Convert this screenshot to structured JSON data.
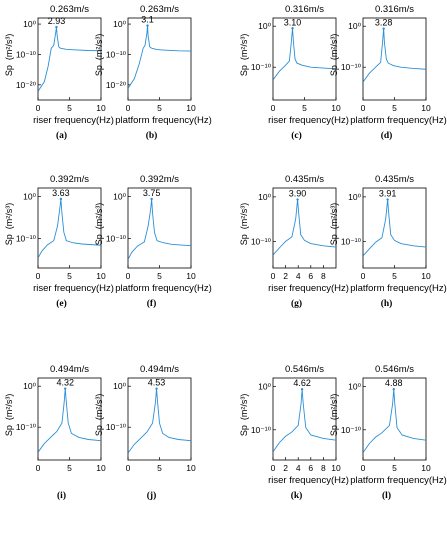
{
  "chart_data": [
    {
      "id": "a",
      "type": "line",
      "title": "0.263m/s",
      "peak_label": "2.93",
      "xlabel": "riser frequency(Hz)",
      "ylabel": "Sp",
      "yunit": "(m²/s³)",
      "panel_label": "(a)",
      "xlim": [
        0,
        10
      ],
      "ylog": true,
      "ylim_exp": [
        -25,
        2
      ],
      "xticks": [
        "0",
        "5",
        "10"
      ],
      "yticks": [
        {
          "exp": 0,
          "label": "10⁰"
        },
        {
          "exp": -10,
          "label": "10⁻¹⁰"
        },
        {
          "exp": -20,
          "label": "10⁻²⁰"
        }
      ],
      "color": "#2b8fd6",
      "series": [
        {
          "x": [
            0.05,
            1,
            1.6,
            2.1,
            2.5,
            2.8,
            2.93,
            3.05,
            3.3,
            3.6,
            4.5,
            6,
            8,
            10
          ],
          "y_exp": [
            -22,
            -19,
            -14,
            -8,
            -7,
            -3,
            -1,
            -4,
            -7.5,
            -8,
            -8.3,
            -8.5,
            -8.7,
            -8.8
          ]
        }
      ]
    },
    {
      "id": "b",
      "type": "line",
      "title": "0.263m/s",
      "peak_label": "3.1",
      "xlabel": "platform frequency(Hz)",
      "ylabel": "Sp",
      "yunit": "(m²/s³)",
      "panel_label": "(b)",
      "xlim": [
        0,
        10
      ],
      "ylog": true,
      "ylim_exp": [
        -25,
        2
      ],
      "xticks": [
        "0",
        "5",
        "10"
      ],
      "yticks": [
        {
          "exp": 0,
          "label": "10⁰"
        },
        {
          "exp": -10,
          "label": "10⁻¹⁰"
        },
        {
          "exp": -20,
          "label": "10⁻²⁰"
        }
      ],
      "color": "#2b8fd6",
      "series": [
        {
          "x": [
            0.05,
            1,
            1.8,
            2.4,
            2.7,
            3.0,
            3.1,
            3.2,
            3.45,
            3.8,
            4.6,
            6,
            8,
            10
          ],
          "y_exp": [
            -21,
            -18,
            -13,
            -8,
            -7,
            -3,
            -0.5,
            -4,
            -7.5,
            -8,
            -8.4,
            -8.6,
            -8.8,
            -8.9
          ]
        }
      ]
    },
    {
      "id": "c",
      "type": "line",
      "title": "0.316m/s",
      "peak_label": "3.10",
      "xlabel": "riser frequency(Hz)",
      "ylabel": "Sp",
      "yunit": "(m²/s³)",
      "panel_label": "(c)",
      "xlim": [
        0,
        10
      ],
      "ylog": true,
      "ylim_exp": [
        -18,
        2
      ],
      "xticks": [
        "0",
        "5",
        "10"
      ],
      "yticks": [
        {
          "exp": 0,
          "label": "10⁰"
        },
        {
          "exp": -10,
          "label": "10⁻¹⁰"
        }
      ],
      "color": "#2b8fd6",
      "series": [
        {
          "x": [
            0.05,
            1,
            2,
            2.6,
            2.9,
            3.1,
            3.25,
            3.5,
            3.8,
            4.6,
            6,
            8,
            10
          ],
          "y_exp": [
            -13,
            -11,
            -9.5,
            -8.5,
            -4,
            -0.5,
            -4,
            -8,
            -9,
            -9.5,
            -10,
            -10.2,
            -10.4
          ]
        }
      ]
    },
    {
      "id": "d",
      "type": "line",
      "title": "0.316m/s",
      "peak_label": "3.28",
      "xlabel": "platform frequency(Hz)",
      "ylabel": "Sp",
      "yunit": "(m²/s³)",
      "panel_label": "(d)",
      "xlim": [
        0,
        10
      ],
      "ylog": true,
      "ylim_exp": [
        -18,
        2
      ],
      "xticks": [
        "0",
        "5",
        "10"
      ],
      "yticks": [
        {
          "exp": 0,
          "label": "10⁰"
        },
        {
          "exp": -10,
          "label": "10⁻¹⁰"
        }
      ],
      "color": "#2b8fd6",
      "series": [
        {
          "x": [
            0.05,
            1,
            2,
            2.8,
            3.1,
            3.28,
            3.4,
            3.7,
            4,
            4.8,
            6,
            8,
            10
          ],
          "y_exp": [
            -13.5,
            -11.5,
            -10,
            -8.8,
            -4,
            -0.6,
            -4,
            -8,
            -9,
            -9.6,
            -10,
            -10.3,
            -10.5
          ]
        }
      ]
    },
    {
      "id": "e",
      "type": "line",
      "title": "0.392m/s",
      "peak_label": "3.63",
      "xlabel": "riser frequency(Hz)",
      "ylabel": "Sp",
      "yunit": "(m²/s³)",
      "panel_label": "(e)",
      "xlim": [
        0,
        10
      ],
      "ylog": true,
      "ylim_exp": [
        -17,
        2
      ],
      "xticks": [
        "0",
        "5",
        "10"
      ],
      "yticks": [
        {
          "exp": 0,
          "label": "10⁰"
        },
        {
          "exp": -10,
          "label": "10⁻¹⁰"
        }
      ],
      "color": "#2b8fd6",
      "series": [
        {
          "x": [
            0.05,
            0.6,
            1.5,
            2.5,
            3.1,
            3.45,
            3.63,
            3.8,
            4.1,
            4.5,
            5.5,
            7,
            10
          ],
          "y_exp": [
            -14.5,
            -13,
            -11.5,
            -10.5,
            -7,
            -3,
            -0.6,
            -4,
            -8.5,
            -10.5,
            -11,
            -11.3,
            -11.6
          ]
        }
      ]
    },
    {
      "id": "f",
      "type": "line",
      "title": "0.392m/s",
      "peak_label": "3.75",
      "xlabel": "platform frequency(Hz)",
      "ylabel": "Sp",
      "yunit": "(m²/s³)",
      "panel_label": "(f)",
      "xlim": [
        0,
        10
      ],
      "ylog": true,
      "ylim_exp": [
        -17,
        2
      ],
      "xticks": [
        "0",
        "5",
        "10"
      ],
      "yticks": [
        {
          "exp": 0,
          "label": "10⁰"
        },
        {
          "exp": -10,
          "label": "10⁻¹⁰"
        }
      ],
      "color": "#2b8fd6",
      "series": [
        {
          "x": [
            0.05,
            0.6,
            1.5,
            2.6,
            3.2,
            3.6,
            3.75,
            3.9,
            4.2,
            4.6,
            5.6,
            7,
            10
          ],
          "y_exp": [
            -14.8,
            -13.3,
            -11.8,
            -10.8,
            -7,
            -3,
            -0.6,
            -4,
            -8.5,
            -10.5,
            -11,
            -11.4,
            -11.7
          ]
        }
      ]
    },
    {
      "id": "g",
      "type": "line",
      "title": "0.435m/s",
      "peak_label": "3.90",
      "xlabel": "riser frequency(Hz)",
      "ylabel": "Sp",
      "yunit": "(m²/s³)",
      "panel_label": "(g)",
      "xlim": [
        0,
        10
      ],
      "ylog": true,
      "ylim_exp": [
        -16,
        2
      ],
      "xticks": [
        "0",
        "2",
        "4",
        "6",
        "8"
      ],
      "yticks": [
        {
          "exp": 0,
          "label": "10⁰"
        },
        {
          "exp": -10,
          "label": "10⁻¹⁰"
        }
      ],
      "color": "#2b8fd6",
      "series": [
        {
          "x": [
            0.05,
            1,
            2,
            3,
            3.6,
            3.9,
            4.1,
            4.4,
            5,
            6,
            8,
            10
          ],
          "y_exp": [
            -13,
            -11.5,
            -10,
            -9,
            -5,
            -0.6,
            -4,
            -8.5,
            -9.8,
            -10.5,
            -11,
            -11.3
          ]
        }
      ]
    },
    {
      "id": "h",
      "type": "line",
      "title": "0.435m/s",
      "peak_label": "3.91",
      "xlabel": "platform frequency(Hz)",
      "ylabel": "Sp",
      "yunit": "(m²/s³)",
      "panel_label": "(h)",
      "xlim": [
        0,
        10
      ],
      "ylog": true,
      "ylim_exp": [
        -16,
        2
      ],
      "xticks": [
        "0",
        "5",
        "10"
      ],
      "yticks": [
        {
          "exp": 0,
          "label": "10⁰"
        },
        {
          "exp": -10,
          "label": "10⁻¹⁰"
        }
      ],
      "color": "#2b8fd6",
      "series": [
        {
          "x": [
            0.05,
            1,
            2,
            3,
            3.6,
            3.91,
            4.1,
            4.4,
            5,
            6,
            8,
            10
          ],
          "y_exp": [
            -13.2,
            -11.7,
            -10.2,
            -9.2,
            -5,
            -0.6,
            -4,
            -8.5,
            -9.8,
            -10.5,
            -11,
            -11.3
          ]
        }
      ]
    },
    {
      "id": "i",
      "type": "line",
      "title": "0.494m/s",
      "peak_label": "4.32",
      "xlabel": "",
      "ylabel": "Sp",
      "yunit": "(m²/s³)",
      "panel_label": "(i)",
      "xlim": [
        0,
        10
      ],
      "ylog": true,
      "ylim_exp": [
        -18,
        2
      ],
      "xticks": [
        "0",
        "5",
        "10"
      ],
      "yticks": [
        {
          "exp": 0,
          "label": "10⁰"
        },
        {
          "exp": -10,
          "label": "10⁻¹⁰"
        }
      ],
      "color": "#2b8fd6",
      "series": [
        {
          "x": [
            0.05,
            1,
            2,
            3,
            3.8,
            4.15,
            4.32,
            4.5,
            4.8,
            5.3,
            6.5,
            8,
            10
          ],
          "y_exp": [
            -16,
            -14,
            -12.5,
            -11,
            -9,
            -4,
            -0.6,
            -4,
            -9,
            -11.5,
            -12.5,
            -13,
            -13.3
          ]
        }
      ]
    },
    {
      "id": "j",
      "type": "line",
      "title": "0.494m/s",
      "peak_label": "4.53",
      "xlabel": "",
      "ylabel": "Sp",
      "yunit": "(m²/s³)",
      "panel_label": "(j)",
      "xlim": [
        0,
        10
      ],
      "ylog": true,
      "ylim_exp": [
        -18,
        2
      ],
      "xticks": [
        "0",
        "5",
        "10"
      ],
      "yticks": [
        {
          "exp": 0,
          "label": "10⁰"
        },
        {
          "exp": -10,
          "label": "10⁻¹⁰"
        }
      ],
      "color": "#2b8fd6",
      "series": [
        {
          "x": [
            0.05,
            1,
            2,
            3,
            3.9,
            4.35,
            4.53,
            4.7,
            5,
            5.5,
            6.5,
            8,
            10
          ],
          "y_exp": [
            -16.2,
            -14.2,
            -12.7,
            -11.2,
            -9,
            -4,
            -0.6,
            -4,
            -9,
            -11.5,
            -12.5,
            -13,
            -13.3
          ]
        }
      ]
    },
    {
      "id": "k",
      "type": "line",
      "title": "0.546m/s",
      "peak_label": "4.62",
      "xlabel": "riser frequency(Hz)",
      "ylabel": "Sp",
      "yunit": "(m²/s³)",
      "panel_label": "(k)",
      "xlim": [
        0,
        10
      ],
      "ylog": true,
      "ylim_exp": [
        -17,
        2
      ],
      "xticks": [
        "0",
        "2",
        "4",
        "6",
        "8",
        "10"
      ],
      "yticks": [
        {
          "exp": 0,
          "label": "10⁰"
        },
        {
          "exp": -10,
          "label": "10⁻¹⁰"
        }
      ],
      "color": "#2b8fd6",
      "series": [
        {
          "x": [
            0.05,
            1,
            2,
            3,
            4,
            4.45,
            4.62,
            4.8,
            5.2,
            6,
            8,
            10
          ],
          "y_exp": [
            -15,
            -13,
            -11.5,
            -10.5,
            -9,
            -4,
            -0.6,
            -4,
            -9.5,
            -11.2,
            -12,
            -12.4
          ]
        }
      ]
    },
    {
      "id": "l",
      "type": "line",
      "title": "0.546m/s",
      "peak_label": "4.88",
      "xlabel": "platform frequency(Hz)",
      "ylabel": "Sp",
      "yunit": "(m²/s³)",
      "panel_label": "(l)",
      "xlim": [
        0,
        10
      ],
      "ylog": true,
      "ylim_exp": [
        -17,
        2
      ],
      "xticks": [
        "0",
        "5",
        "10"
      ],
      "yticks": [
        {
          "exp": 0,
          "label": "10⁰"
        },
        {
          "exp": -10,
          "label": "10⁻¹⁰"
        }
      ],
      "color": "#2b8fd6",
      "series": [
        {
          "x": [
            0.05,
            1,
            2,
            3,
            4.2,
            4.7,
            4.88,
            5.05,
            5.4,
            6.2,
            8,
            10
          ],
          "y_exp": [
            -15.2,
            -13.2,
            -11.7,
            -10.7,
            -9,
            -4,
            -0.6,
            -4,
            -9.5,
            -11.2,
            -12,
            -12.4
          ]
        }
      ]
    }
  ]
}
